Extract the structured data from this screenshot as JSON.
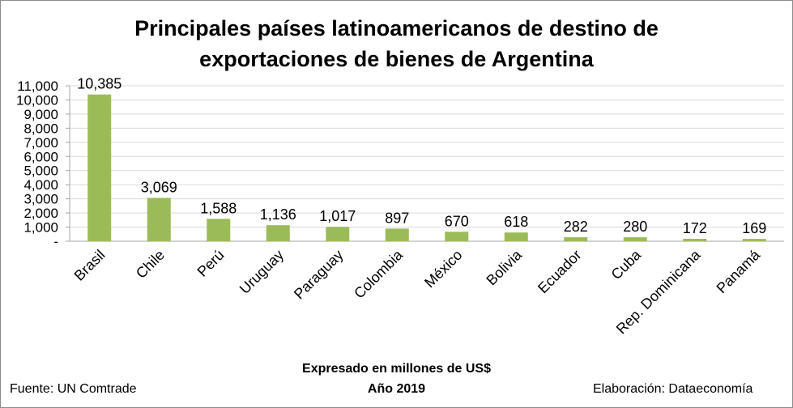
{
  "chart_data": {
    "type": "bar",
    "title_lines": [
      "Principales países latinoamericanos de destino de",
      "exportaciones de bienes de Argentina"
    ],
    "categories": [
      "Brasil",
      "Chile",
      "Perú",
      "Uruguay",
      "Paraguay",
      "Colombia",
      "México",
      "Bolivia",
      "Ecuador",
      "Cuba",
      "Rep. Dominicana",
      "Panamá"
    ],
    "values": [
      10385,
      3069,
      1588,
      1136,
      1017,
      897,
      670,
      618,
      282,
      280,
      172,
      169
    ],
    "data_labels": [
      "10,385",
      "3,069",
      "1,588",
      "1,136",
      "1,017",
      "897",
      "670",
      "618",
      "282",
      "280",
      "172",
      "169"
    ],
    "ylim": [
      0,
      11000
    ],
    "yticks": [
      0,
      1000,
      2000,
      3000,
      4000,
      5000,
      6000,
      7000,
      8000,
      9000,
      10000,
      11000
    ],
    "ytick_labels": [
      "-",
      "1,000",
      "2,000",
      "3,000",
      "4,000",
      "5,000",
      "6,000",
      "7,000",
      "8,000",
      "9,000",
      "10,000",
      "11,000"
    ],
    "grid": true,
    "legend": "none",
    "bar_color": "#9bbb59",
    "grid_color": "#d9d9d9",
    "axis_color": "#a6a6a6",
    "notes": [
      "Expresado en millones de US$",
      "Año 2019"
    ],
    "source": "Fuente: UN Comtrade",
    "credit": "Elaboración: Dataeconomía"
  }
}
